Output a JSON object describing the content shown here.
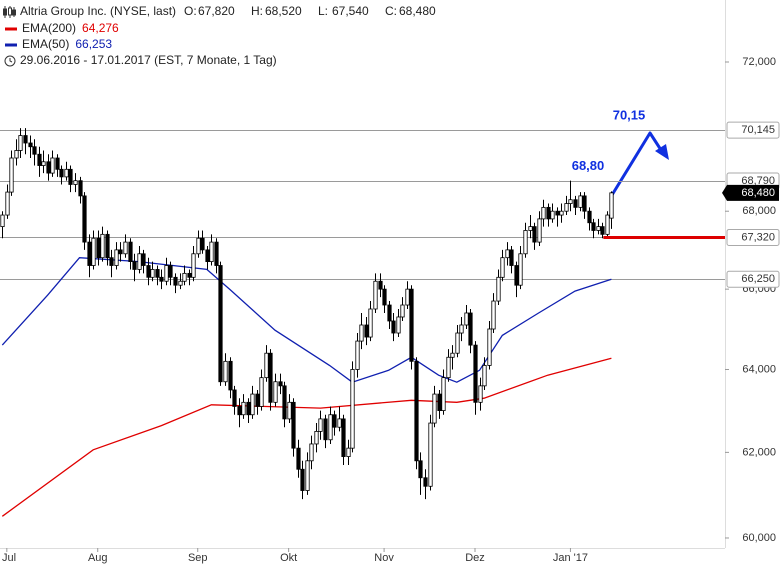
{
  "header": {
    "symbol": "Altria Group Inc. (NYSE, last)",
    "ohlc": [
      {
        "key": "O:",
        "value": 67.82,
        "label": "67,820"
      },
      {
        "key": "H:",
        "value": 68.52,
        "label": "68,520"
      },
      {
        "key": "L:",
        "value": 67.54,
        "label": "67,540"
      },
      {
        "key": "C:",
        "value": 68.48,
        "label": "68,480"
      }
    ],
    "period": "29.06.2016 - 17.01.2017 (EST, 7 Monate, 1 Tag)"
  },
  "chart_data": {
    "type": "candlestick",
    "log_scale": true,
    "xlim": [
      -0.5,
      159
    ],
    "ylim": [
      59.77,
      73.73
    ],
    "yticks": [
      {
        "value": 60,
        "label": "60,000"
      },
      {
        "value": 62,
        "label": "62,000"
      },
      {
        "value": 64,
        "label": "64,000"
      },
      {
        "value": 66,
        "label": "66,000"
      },
      {
        "value": 68,
        "label": "68,000"
      },
      {
        "value": 72,
        "label": "72,000"
      }
    ],
    "xticks": [
      {
        "value": 1,
        "label": "Jul"
      },
      {
        "value": 21,
        "label": "Aug"
      },
      {
        "value": 43,
        "label": "Sep"
      },
      {
        "value": 63,
        "label": "Okt"
      },
      {
        "value": 84,
        "label": "Nov"
      },
      {
        "value": 104,
        "label": "Dez"
      },
      {
        "value": 125,
        "label": "Jan '17"
      }
    ],
    "up_color": "#ffffff",
    "down_color": "#000000",
    "ohlc": [
      [
        67.6,
        68.0,
        67.3,
        67.9
      ],
      [
        67.9,
        68.7,
        67.8,
        68.5
      ],
      [
        68.5,
        69.6,
        68.4,
        69.4
      ],
      [
        69.4,
        69.9,
        69.2,
        69.6
      ],
      [
        69.6,
        70.2,
        69.4,
        70.0
      ],
      [
        70.0,
        70.2,
        69.5,
        69.8
      ],
      [
        69.8,
        70.0,
        69.4,
        69.7
      ],
      [
        69.7,
        69.9,
        69.2,
        69.5
      ],
      [
        69.5,
        69.7,
        68.9,
        69.2
      ],
      [
        69.2,
        69.6,
        69.0,
        69.3
      ],
      [
        69.3,
        69.5,
        68.8,
        69.0
      ],
      [
        69.0,
        69.6,
        68.9,
        69.4
      ],
      [
        69.4,
        69.5,
        68.9,
        69.1
      ],
      [
        69.1,
        69.2,
        68.7,
        68.9
      ],
      [
        68.9,
        69.3,
        68.8,
        69.1
      ],
      [
        69.1,
        69.2,
        68.5,
        68.7
      ],
      [
        68.7,
        69.0,
        68.5,
        68.8
      ],
      [
        68.8,
        68.9,
        68.2,
        68.4
      ],
      [
        68.4,
        68.5,
        67.0,
        67.2
      ],
      [
        67.2,
        67.4,
        66.3,
        66.6
      ],
      [
        66.6,
        67.5,
        66.5,
        67.3
      ],
      [
        67.3,
        67.5,
        66.6,
        66.8
      ],
      [
        66.8,
        67.6,
        66.7,
        67.4
      ],
      [
        67.4,
        67.5,
        66.6,
        66.8
      ],
      [
        66.8,
        67.0,
        66.3,
        66.6
      ],
      [
        66.6,
        67.2,
        66.5,
        67.0
      ],
      [
        67.0,
        67.2,
        66.7,
        66.9
      ],
      [
        66.9,
        67.4,
        66.8,
        67.2
      ],
      [
        67.2,
        67.3,
        66.5,
        66.7
      ],
      [
        66.7,
        66.9,
        66.2,
        66.5
      ],
      [
        66.5,
        67.1,
        66.4,
        66.9
      ],
      [
        66.9,
        67.0,
        66.4,
        66.6
      ],
      [
        66.6,
        66.8,
        66.1,
        66.3
      ],
      [
        66.3,
        66.7,
        66.2,
        66.5
      ],
      [
        66.5,
        66.6,
        66.1,
        66.3
      ],
      [
        66.3,
        66.5,
        66.0,
        66.2
      ],
      [
        66.2,
        66.8,
        66.1,
        66.6
      ],
      [
        66.6,
        66.7,
        66.1,
        66.3
      ],
      [
        66.3,
        66.4,
        65.9,
        66.1
      ],
      [
        66.1,
        66.4,
        66.0,
        66.2
      ],
      [
        66.2,
        66.6,
        66.1,
        66.4
      ],
      [
        66.4,
        66.5,
        66.1,
        66.3
      ],
      [
        66.3,
        67.1,
        66.2,
        66.9
      ],
      [
        66.9,
        67.5,
        66.8,
        67.3
      ],
      [
        67.3,
        67.5,
        66.9,
        67.0
      ],
      [
        67.0,
        67.1,
        66.5,
        66.7
      ],
      [
        66.7,
        67.4,
        66.6,
        67.2
      ],
      [
        67.2,
        67.3,
        66.4,
        66.6
      ],
      [
        66.6,
        66.7,
        63.6,
        63.7
      ],
      [
        63.7,
        64.4,
        63.6,
        64.2
      ],
      [
        64.2,
        64.3,
        63.3,
        63.5
      ],
      [
        63.5,
        63.6,
        62.9,
        63.1
      ],
      [
        63.1,
        63.3,
        62.6,
        62.9
      ],
      [
        62.9,
        63.4,
        62.8,
        63.2
      ],
      [
        63.2,
        63.3,
        62.7,
        62.9
      ],
      [
        62.9,
        63.6,
        62.8,
        63.4
      ],
      [
        63.4,
        63.5,
        62.9,
        63.1
      ],
      [
        63.1,
        64.0,
        63.0,
        63.8
      ],
      [
        63.8,
        64.6,
        63.7,
        64.4
      ],
      [
        64.4,
        64.5,
        63.0,
        63.2
      ],
      [
        63.2,
        63.9,
        63.1,
        63.7
      ],
      [
        63.7,
        63.9,
        63.4,
        63.6
      ],
      [
        63.6,
        63.7,
        62.6,
        62.8
      ],
      [
        62.8,
        63.4,
        62.7,
        63.2
      ],
      [
        63.2,
        63.3,
        61.9,
        62.1
      ],
      [
        62.1,
        62.3,
        61.4,
        61.6
      ],
      [
        61.6,
        61.8,
        60.9,
        61.1
      ],
      [
        61.1,
        62.0,
        61.0,
        61.8
      ],
      [
        61.8,
        62.4,
        61.6,
        62.2
      ],
      [
        62.2,
        62.7,
        62.0,
        62.5
      ],
      [
        62.5,
        63.0,
        62.3,
        62.8
      ],
      [
        62.8,
        62.9,
        62.1,
        62.3
      ],
      [
        62.3,
        63.1,
        62.2,
        62.9
      ],
      [
        62.9,
        63.0,
        62.4,
        62.6
      ],
      [
        62.6,
        63.1,
        62.5,
        62.8
      ],
      [
        62.8,
        62.9,
        61.7,
        61.9
      ],
      [
        61.9,
        62.3,
        61.7,
        62.1
      ],
      [
        62.1,
        64.2,
        62.0,
        64.0
      ],
      [
        64.0,
        64.9,
        63.8,
        64.7
      ],
      [
        64.7,
        65.4,
        64.5,
        65.1
      ],
      [
        65.1,
        65.3,
        64.6,
        64.8
      ],
      [
        64.8,
        65.7,
        64.7,
        65.5
      ],
      [
        65.5,
        66.4,
        65.4,
        66.2
      ],
      [
        66.2,
        66.4,
        65.8,
        66.0
      ],
      [
        66.0,
        66.1,
        65.4,
        65.6
      ],
      [
        65.6,
        65.7,
        65.0,
        65.2
      ],
      [
        65.2,
        65.4,
        64.7,
        64.9
      ],
      [
        64.9,
        65.5,
        64.8,
        65.3
      ],
      [
        65.3,
        65.8,
        65.2,
        65.6
      ],
      [
        65.6,
        66.2,
        65.5,
        66.0
      ],
      [
        66.0,
        66.1,
        64.0,
        64.2
      ],
      [
        64.2,
        64.3,
        61.6,
        61.8
      ],
      [
        61.8,
        62.0,
        61.0,
        61.4
      ],
      [
        61.4,
        61.6,
        60.9,
        61.2
      ],
      [
        61.2,
        62.9,
        61.1,
        62.7
      ],
      [
        62.7,
        63.6,
        62.6,
        63.4
      ],
      [
        63.4,
        63.5,
        62.8,
        63.0
      ],
      [
        63.0,
        64.0,
        62.9,
        63.8
      ],
      [
        63.8,
        64.5,
        63.7,
        64.3
      ],
      [
        64.3,
        64.6,
        64.0,
        64.4
      ],
      [
        64.4,
        65.1,
        64.3,
        64.9
      ],
      [
        64.9,
        65.3,
        64.7,
        65.1
      ],
      [
        65.1,
        65.6,
        65.0,
        65.4
      ],
      [
        65.4,
        65.5,
        64.4,
        64.6
      ],
      [
        64.6,
        64.7,
        62.9,
        63.2
      ],
      [
        63.2,
        63.8,
        63.0,
        63.6
      ],
      [
        63.6,
        64.3,
        63.5,
        64.1
      ],
      [
        64.1,
        65.2,
        64.0,
        65.0
      ],
      [
        65.0,
        65.9,
        64.9,
        65.7
      ],
      [
        65.7,
        66.5,
        65.6,
        66.3
      ],
      [
        66.3,
        67.0,
        66.2,
        66.8
      ],
      [
        66.8,
        67.2,
        66.6,
        67.0
      ],
      [
        67.0,
        67.1,
        66.4,
        66.6
      ],
      [
        66.6,
        66.7,
        65.8,
        66.1
      ],
      [
        66.1,
        67.1,
        66.0,
        66.9
      ],
      [
        66.9,
        67.7,
        66.8,
        67.5
      ],
      [
        67.5,
        67.9,
        67.3,
        67.6
      ],
      [
        67.6,
        67.7,
        67.0,
        67.2
      ],
      [
        67.2,
        68.0,
        67.1,
        67.8
      ],
      [
        67.8,
        68.3,
        67.6,
        68.1
      ],
      [
        68.1,
        68.2,
        67.6,
        67.8
      ],
      [
        67.8,
        68.2,
        67.7,
        68.0
      ],
      [
        68.0,
        68.1,
        67.6,
        67.9
      ],
      [
        67.9,
        68.2,
        67.7,
        68.0
      ],
      [
        68.0,
        68.4,
        67.9,
        68.2
      ],
      [
        68.2,
        68.8,
        68.0,
        68.3
      ],
      [
        68.3,
        68.4,
        67.9,
        68.1
      ],
      [
        68.1,
        68.5,
        68.0,
        68.4
      ],
      [
        68.4,
        68.5,
        67.8,
        68.0
      ],
      [
        68.0,
        68.1,
        67.5,
        67.7
      ],
      [
        67.7,
        67.8,
        67.3,
        67.5
      ],
      [
        67.5,
        67.8,
        67.4,
        67.6
      ],
      [
        67.6,
        67.7,
        67.3,
        67.4
      ],
      [
        67.4,
        68.0,
        67.3,
        67.9
      ],
      [
        67.82,
        68.52,
        67.54,
        68.48
      ]
    ],
    "lines": [
      {
        "name": "EMA(200)",
        "color": "#e00000",
        "last": {
          "value": 64.276,
          "label": "64,276"
        },
        "x": [
          0,
          20,
          35,
          46,
          70,
          90,
          100,
          106,
          120,
          134
        ],
        "values": [
          60.5,
          62.06,
          62.64,
          63.14,
          63.06,
          63.25,
          63.2,
          63.3,
          63.86,
          64.276
        ]
      },
      {
        "name": "EMA(50)",
        "color": "#1020b0",
        "last": {
          "value": 66.253,
          "label": "66,253"
        },
        "x": [
          0,
          10,
          17,
          30,
          45,
          50,
          60,
          72,
          77,
          85,
          90,
          96,
          100,
          105,
          110,
          118,
          126,
          134
        ],
        "values": [
          64.6,
          65.85,
          66.8,
          66.7,
          66.5,
          66.0,
          64.97,
          64.1,
          63.69,
          63.98,
          64.3,
          63.86,
          63.69,
          63.98,
          64.84,
          65.4,
          65.95,
          66.253
        ]
      }
    ],
    "levels": [
      {
        "value": 70.145,
        "label": "70,145"
      },
      {
        "value": 68.79,
        "label": "68,790"
      },
      {
        "value": 67.32,
        "label": "67,320",
        "color": "#dd0000"
      },
      {
        "value": 66.25,
        "label": "66,250"
      }
    ],
    "level_color": "#9a9a9a",
    "last_price": {
      "value": 68.48,
      "label": "68,480"
    },
    "annotations": [
      {
        "text": "70,15",
        "value": 70.15,
        "color": "#1030e0"
      },
      {
        "text": "68,80",
        "value": 68.8,
        "color": "#1030e0"
      }
    ]
  }
}
